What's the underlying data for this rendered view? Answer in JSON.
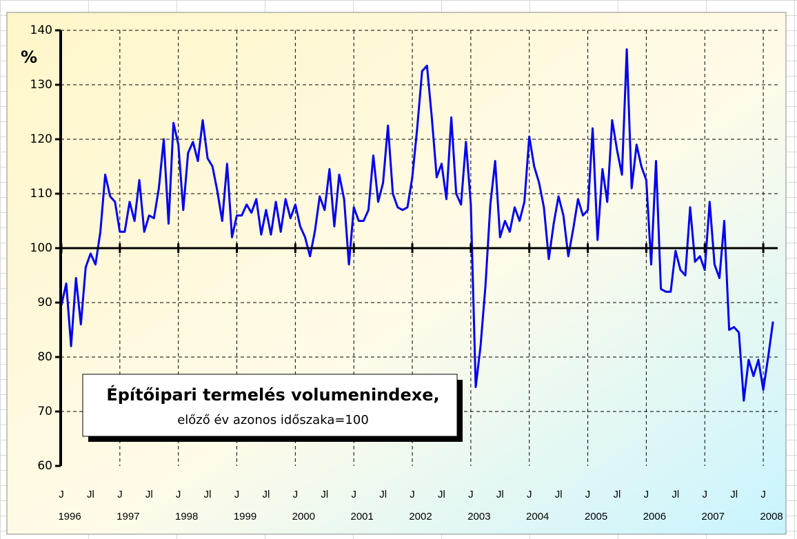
{
  "chart_data": {
    "type": "line",
    "title": "Építőipari termelés volumenindexe,",
    "subtitle": "előző év azonos időszaka=100",
    "ylabel": "%",
    "categories": [
      "J",
      null,
      null,
      null,
      null,
      null,
      "Jl",
      null,
      null,
      null,
      null,
      null,
      "J",
      null,
      null,
      null,
      null,
      null,
      "Jl",
      null,
      null,
      null,
      null,
      null,
      "J",
      null,
      null,
      null,
      null,
      null,
      "Jl",
      null,
      null,
      null,
      null,
      null,
      "J",
      null,
      null,
      null,
      null,
      null,
      "Jl",
      null,
      null,
      null,
      null,
      null,
      "J",
      null,
      null,
      null,
      null,
      null,
      "Jl",
      null,
      null,
      null,
      null,
      null,
      "J",
      null,
      null,
      null,
      null,
      null,
      "Jl",
      null,
      null,
      null,
      null,
      null,
      "J",
      null,
      null,
      null,
      null,
      null,
      "Jl",
      null,
      null,
      null,
      null,
      null,
      "J",
      null,
      null,
      null,
      null,
      null,
      "Jl",
      null,
      null,
      null,
      null,
      null,
      "J",
      null,
      null,
      null,
      null,
      null,
      "Jl",
      null,
      null,
      null,
      null,
      null,
      "J",
      null,
      null,
      null,
      null,
      null,
      "Jl",
      null,
      null,
      null,
      null,
      null,
      "J",
      null,
      null,
      null,
      null,
      null,
      "Jl",
      null,
      null,
      null,
      null,
      null,
      "J",
      null,
      null,
      null,
      null,
      null,
      "Jl",
      null,
      null,
      null,
      null,
      null,
      "J",
      null,
      null
    ],
    "years": [
      "1996",
      "1997",
      "1998",
      "1999",
      "2000",
      "2001",
      "2002",
      "2003",
      "2004",
      "2005",
      "2006",
      "2007",
      "2008"
    ],
    "series": [
      {
        "color": "#0000ee",
        "values": [
          89.5,
          93.5,
          82,
          94.5,
          86,
          96.5,
          99,
          97,
          103,
          113.5,
          109.5,
          108.5,
          103,
          103,
          108.5,
          105,
          112.5,
          103,
          106,
          105.5,
          111,
          120,
          104.5,
          123,
          119,
          107,
          117.5,
          119.5,
          116,
          123.5,
          116.5,
          115,
          110.5,
          105,
          115.5,
          102,
          106,
          106,
          108,
          106.5,
          109,
          102.5,
          107,
          102.5,
          108.5,
          103,
          109,
          105.5,
          108,
          104,
          102,
          98.5,
          103,
          109.5,
          107,
          114.5,
          104,
          113.5,
          109,
          97,
          107.5,
          105,
          105,
          107,
          117,
          108.5,
          112,
          122.5,
          110,
          107.5,
          107,
          107.5,
          113,
          122,
          132.5,
          133.5,
          124,
          113,
          115.5,
          109,
          124,
          110,
          108,
          119.5,
          108,
          74.5,
          82,
          93,
          108,
          116,
          102,
          105,
          103,
          107.5,
          105,
          108.5,
          120.5,
          115,
          112,
          107.5,
          98,
          104.5,
          109.5,
          106,
          98.5,
          103.5,
          109,
          106,
          107,
          122,
          101.5,
          114.5,
          108.5,
          123.5,
          118,
          113.5,
          136.5,
          111,
          119,
          115,
          112.5,
          97,
          116,
          92.5,
          92,
          92,
          99.5,
          96,
          95,
          107.5,
          97.5,
          98.5,
          96,
          108.5,
          97,
          94.5,
          105,
          85,
          85.5,
          84.5,
          72,
          79.5,
          76.5,
          79.5,
          74,
          80,
          86.5
        ]
      }
    ],
    "ylim": [
      60,
      140
    ],
    "yticks": [
      60,
      70,
      80,
      90,
      100,
      110,
      120,
      130,
      140
    ],
    "baseline": 100,
    "grid": true
  }
}
